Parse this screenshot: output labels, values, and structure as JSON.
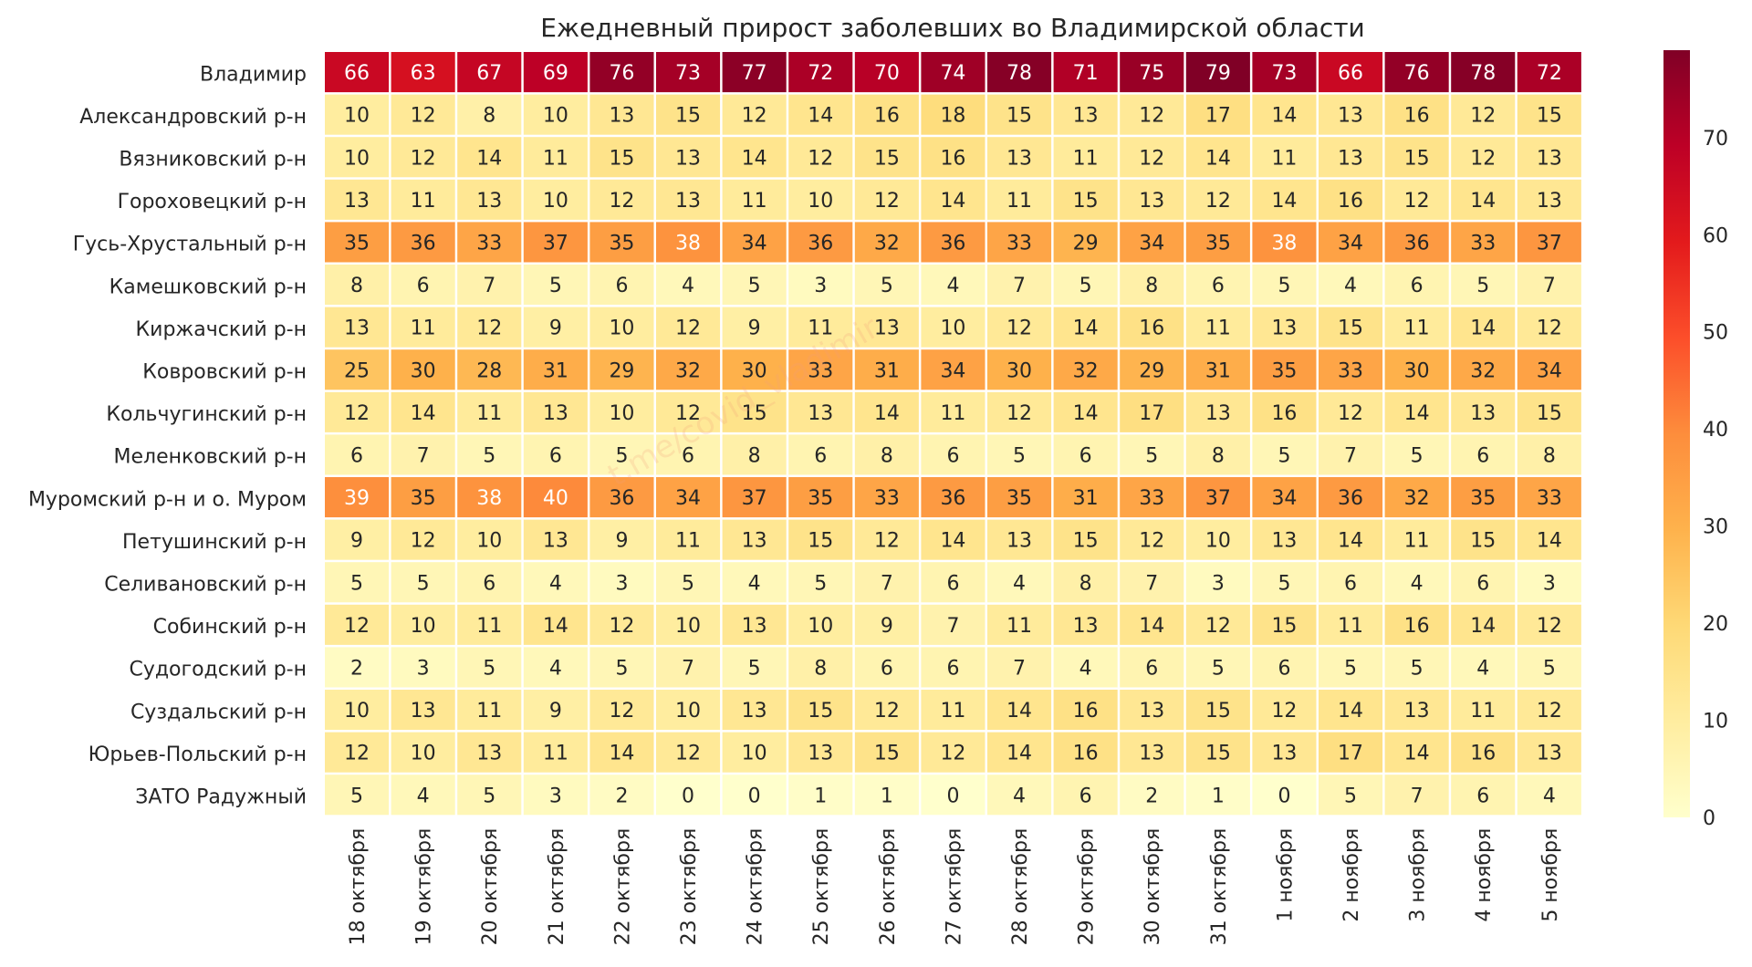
{
  "chart_data": {
    "type": "heatmap",
    "title": "Ежедневный прирост заболевших во Владимирской области",
    "watermark": "t.me/covid_vladimir",
    "rows": [
      "Владимир",
      "Александровский р-н",
      "Вязниковский р-н",
      "Гороховецкий р-н",
      "Гусь-Хрустальный р-н",
      "Камешковский р-н",
      "Киржачский р-н",
      "Ковровский р-н",
      "Кольчугинский р-н",
      "Меленковский р-н",
      "Муромский р-н и о. Муром",
      "Петушинский р-н",
      "Селивановский р-н",
      "Собинский р-н",
      "Судогодский р-н",
      "Суздальский р-н",
      "Юрьев-Польский р-н",
      "ЗАТО Радужный"
    ],
    "columns": [
      "18 октября",
      "19 октября",
      "20 октября",
      "21 октября",
      "22 октября",
      "23 октября",
      "24 октября",
      "25 октября",
      "26 октября",
      "27 октября",
      "28 октября",
      "29 октября",
      "30 октября",
      "31 октября",
      "1 ноября",
      "2 ноября",
      "3 ноября",
      "4 ноября",
      "5 ноября"
    ],
    "values": [
      [
        66,
        63,
        67,
        69,
        76,
        73,
        77,
        72,
        70,
        74,
        78,
        71,
        75,
        79,
        73,
        66,
        76,
        78,
        72
      ],
      [
        10,
        12,
        8,
        10,
        13,
        15,
        12,
        14,
        16,
        18,
        15,
        13,
        12,
        17,
        14,
        13,
        16,
        12,
        15
      ],
      [
        10,
        12,
        14,
        11,
        15,
        13,
        14,
        12,
        15,
        16,
        13,
        11,
        12,
        14,
        11,
        13,
        15,
        12,
        13
      ],
      [
        13,
        11,
        13,
        10,
        12,
        13,
        11,
        10,
        12,
        14,
        11,
        15,
        13,
        12,
        14,
        16,
        12,
        14,
        13
      ],
      [
        35,
        36,
        33,
        37,
        35,
        38,
        34,
        36,
        32,
        36,
        33,
        29,
        34,
        35,
        38,
        34,
        36,
        33,
        37
      ],
      [
        8,
        6,
        7,
        5,
        6,
        4,
        5,
        3,
        5,
        4,
        7,
        5,
        8,
        6,
        5,
        4,
        6,
        5,
        7
      ],
      [
        13,
        11,
        12,
        9,
        10,
        12,
        9,
        11,
        13,
        10,
        12,
        14,
        16,
        11,
        13,
        15,
        11,
        14,
        12
      ],
      [
        25,
        30,
        28,
        31,
        29,
        32,
        30,
        33,
        31,
        34,
        30,
        32,
        29,
        31,
        35,
        33,
        30,
        32,
        34
      ],
      [
        12,
        14,
        11,
        13,
        10,
        12,
        15,
        13,
        14,
        11,
        12,
        14,
        17,
        13,
        16,
        12,
        14,
        13,
        15
      ],
      [
        6,
        7,
        5,
        6,
        5,
        6,
        8,
        6,
        8,
        6,
        5,
        6,
        5,
        8,
        5,
        7,
        5,
        6,
        8
      ],
      [
        39,
        35,
        38,
        40,
        36,
        34,
        37,
        35,
        33,
        36,
        35,
        31,
        33,
        37,
        34,
        36,
        32,
        35,
        33
      ],
      [
        9,
        12,
        10,
        13,
        9,
        11,
        13,
        15,
        12,
        14,
        13,
        15,
        12,
        10,
        13,
        14,
        11,
        15,
        14
      ],
      [
        5,
        5,
        6,
        4,
        3,
        5,
        4,
        5,
        7,
        6,
        4,
        8,
        7,
        3,
        5,
        6,
        4,
        6,
        3
      ],
      [
        12,
        10,
        11,
        14,
        12,
        10,
        13,
        10,
        9,
        7,
        11,
        13,
        14,
        12,
        15,
        11,
        16,
        14,
        12
      ],
      [
        2,
        3,
        5,
        4,
        5,
        7,
        5,
        8,
        6,
        6,
        7,
        4,
        6,
        5,
        6,
        5,
        5,
        4,
        5
      ],
      [
        10,
        13,
        11,
        9,
        12,
        10,
        13,
        15,
        12,
        11,
        14,
        16,
        13,
        15,
        12,
        14,
        13,
        11,
        12
      ],
      [
        12,
        10,
        13,
        11,
        14,
        12,
        10,
        13,
        15,
        12,
        14,
        16,
        13,
        15,
        13,
        17,
        14,
        16,
        13
      ],
      [
        5,
        4,
        5,
        3,
        2,
        0,
        0,
        1,
        1,
        0,
        4,
        6,
        2,
        1,
        0,
        5,
        7,
        6,
        4
      ]
    ],
    "colorbar": {
      "colormap": "YlOrRd",
      "range": [
        0,
        79
      ],
      "ticks": [
        0,
        10,
        20,
        30,
        40,
        50,
        60,
        70
      ]
    }
  }
}
